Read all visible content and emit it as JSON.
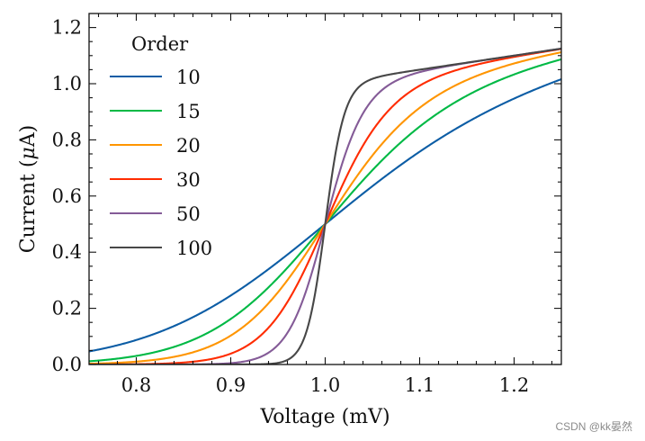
{
  "chart_data": {
    "type": "line",
    "title": "",
    "xlabel": "Voltage (mV)",
    "ylabel_prefix": "Current (",
    "ylabel_symbol": "μ",
    "ylabel_suffix": "A)",
    "xlim": [
      0.75,
      1.25
    ],
    "ylim": [
      0.0,
      1.25
    ],
    "xticks": [
      0.8,
      0.9,
      1.0,
      1.1,
      1.2
    ],
    "xtick_labels": [
      "0.8",
      "0.9",
      "1.0",
      "1.1",
      "1.2"
    ],
    "yticks": [
      0.0,
      0.2,
      0.4,
      0.6,
      0.8,
      1.0,
      1.2
    ],
    "ytick_labels": [
      "0.0",
      "0.2",
      "0.4",
      "0.6",
      "0.8",
      "1.0",
      "1.2"
    ],
    "grid": false,
    "legend_title": "Order",
    "legend_position": "top-left",
    "series": [
      {
        "name": "10",
        "order": 10,
        "color": "#0C5DA5"
      },
      {
        "name": "15",
        "order": 15,
        "color": "#00B945"
      },
      {
        "name": "20",
        "order": 20,
        "color": "#FF9500"
      },
      {
        "name": "30",
        "order": 30,
        "color": "#FF2C00"
      },
      {
        "name": "50",
        "order": 50,
        "color": "#845B97"
      },
      {
        "name": "100",
        "order": 100,
        "color": "#474747"
      }
    ]
  },
  "watermark": "CSDN @kk晏然"
}
